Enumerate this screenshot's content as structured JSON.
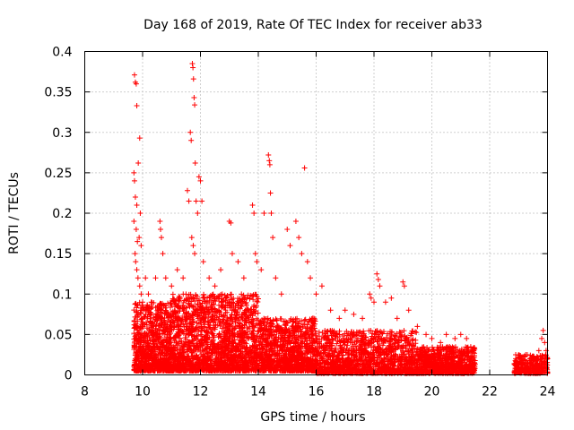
{
  "chart_data": {
    "type": "scatter",
    "title": "Day 168 of 2019, Rate Of TEC Index for receiver ab33",
    "xlabel": "GPS time / hours",
    "ylabel": "ROTI / TECUs",
    "xlim": [
      8,
      24
    ],
    "ylim": [
      0,
      0.4
    ],
    "x_ticks": [
      8,
      10,
      12,
      14,
      16,
      18,
      20,
      22,
      24
    ],
    "y_ticks": [
      0,
      0.05,
      0.1,
      0.15,
      0.2,
      0.25,
      0.3,
      0.35,
      0.4
    ],
    "x_tick_labels": [
      "8",
      "10",
      "12",
      "14",
      "16",
      "18",
      "20",
      "22",
      "24"
    ],
    "y_tick_labels": [
      "0",
      "0.05",
      "0.1",
      "0.15",
      "0.2",
      "0.25",
      "0.3",
      "0.35",
      "0.4"
    ],
    "grid": true,
    "marker": "+",
    "color": "#ff0000",
    "series": [
      {
        "name": "ROTI",
        "points": [
          [
            9.72,
            0.371
          ],
          [
            9.75,
            0.362
          ],
          [
            9.78,
            0.36
          ],
          [
            9.8,
            0.333
          ],
          [
            9.85,
            0.262
          ],
          [
            9.9,
            0.293
          ],
          [
            9.7,
            0.25
          ],
          [
            9.72,
            0.24
          ],
          [
            9.75,
            0.22
          ],
          [
            9.8,
            0.21
          ],
          [
            9.7,
            0.19
          ],
          [
            9.78,
            0.18
          ],
          [
            9.82,
            0.165
          ],
          [
            9.88,
            0.17
          ],
          [
            9.92,
            0.2
          ],
          [
            9.95,
            0.16
          ],
          [
            9.74,
            0.15
          ],
          [
            9.76,
            0.14
          ],
          [
            9.8,
            0.13
          ],
          [
            9.84,
            0.12
          ],
          [
            9.9,
            0.11
          ],
          [
            9.95,
            0.1
          ],
          [
            10.0,
            0.09
          ],
          [
            10.1,
            0.12
          ],
          [
            10.2,
            0.1
          ],
          [
            10.3,
            0.09
          ],
          [
            10.45,
            0.12
          ],
          [
            10.6,
            0.19
          ],
          [
            10.62,
            0.18
          ],
          [
            10.65,
            0.17
          ],
          [
            10.7,
            0.15
          ],
          [
            10.8,
            0.12
          ],
          [
            11.0,
            0.11
          ],
          [
            11.2,
            0.13
          ],
          [
            11.4,
            0.12
          ],
          [
            11.55,
            0.228
          ],
          [
            11.6,
            0.215
          ],
          [
            11.65,
            0.3
          ],
          [
            11.68,
            0.29
          ],
          [
            11.72,
            0.385
          ],
          [
            11.74,
            0.38
          ],
          [
            11.76,
            0.366
          ],
          [
            11.78,
            0.343
          ],
          [
            11.8,
            0.334
          ],
          [
            11.82,
            0.262
          ],
          [
            11.85,
            0.215
          ],
          [
            11.9,
            0.2
          ],
          [
            11.95,
            0.245
          ],
          [
            12.0,
            0.24
          ],
          [
            12.05,
            0.215
          ],
          [
            11.7,
            0.17
          ],
          [
            11.75,
            0.16
          ],
          [
            11.8,
            0.15
          ],
          [
            12.1,
            0.14
          ],
          [
            12.3,
            0.12
          ],
          [
            12.5,
            0.11
          ],
          [
            12.7,
            0.13
          ],
          [
            13.0,
            0.19
          ],
          [
            13.05,
            0.188
          ],
          [
            13.1,
            0.15
          ],
          [
            13.3,
            0.14
          ],
          [
            13.5,
            0.12
          ],
          [
            13.8,
            0.21
          ],
          [
            13.85,
            0.2
          ],
          [
            13.9,
            0.15
          ],
          [
            13.95,
            0.14
          ],
          [
            14.1,
            0.13
          ],
          [
            14.2,
            0.2
          ],
          [
            14.35,
            0.272
          ],
          [
            14.38,
            0.265
          ],
          [
            14.4,
            0.26
          ],
          [
            14.42,
            0.225
          ],
          [
            14.45,
            0.2
          ],
          [
            14.5,
            0.17
          ],
          [
            14.6,
            0.12
          ],
          [
            14.8,
            0.1
          ],
          [
            15.0,
            0.18
          ],
          [
            15.1,
            0.16
          ],
          [
            15.3,
            0.19
          ],
          [
            15.4,
            0.17
          ],
          [
            15.5,
            0.15
          ],
          [
            15.6,
            0.256
          ],
          [
            15.7,
            0.14
          ],
          [
            15.8,
            0.12
          ],
          [
            16.0,
            0.1
          ],
          [
            16.2,
            0.11
          ],
          [
            16.5,
            0.08
          ],
          [
            16.8,
            0.07
          ],
          [
            17.0,
            0.08
          ],
          [
            17.3,
            0.075
          ],
          [
            17.6,
            0.07
          ],
          [
            17.85,
            0.1
          ],
          [
            17.9,
            0.095
          ],
          [
            18.0,
            0.09
          ],
          [
            18.1,
            0.125
          ],
          [
            18.15,
            0.118
          ],
          [
            18.2,
            0.11
          ],
          [
            18.4,
            0.09
          ],
          [
            18.6,
            0.095
          ],
          [
            18.8,
            0.07
          ],
          [
            19.0,
            0.115
          ],
          [
            19.05,
            0.11
          ],
          [
            19.2,
            0.08
          ],
          [
            19.5,
            0.06
          ],
          [
            19.8,
            0.05
          ],
          [
            20.0,
            0.045
          ],
          [
            20.3,
            0.04
          ],
          [
            20.5,
            0.05
          ],
          [
            20.8,
            0.045
          ],
          [
            21.0,
            0.05
          ],
          [
            21.2,
            0.045
          ],
          [
            21.4,
            0.03
          ],
          [
            22.9,
            0.025
          ],
          [
            23.1,
            0.02
          ],
          [
            23.3,
            0.025
          ],
          [
            23.5,
            0.02
          ],
          [
            23.7,
            0.03
          ],
          [
            23.8,
            0.045
          ],
          [
            23.85,
            0.055
          ],
          [
            23.9,
            0.04
          ],
          [
            23.95,
            0.03
          ],
          [
            24.0,
            0.02
          ]
        ]
      }
    ],
    "dense_bands": [
      {
        "x_start": 9.7,
        "x_end": 11.0,
        "y_min": 0.005,
        "y_max": 0.09,
        "count": 900
      },
      {
        "x_start": 11.0,
        "x_end": 14.0,
        "y_min": 0.005,
        "y_max": 0.1,
        "count": 1800
      },
      {
        "x_start": 14.0,
        "x_end": 16.0,
        "y_min": 0.005,
        "y_max": 0.07,
        "count": 1100
      },
      {
        "x_start": 16.0,
        "x_end": 19.5,
        "y_min": 0.002,
        "y_max": 0.055,
        "count": 1300
      },
      {
        "x_start": 19.5,
        "x_end": 21.5,
        "y_min": 0.002,
        "y_max": 0.035,
        "count": 800
      },
      {
        "x_start": 22.85,
        "x_end": 24.0,
        "y_min": 0.002,
        "y_max": 0.025,
        "count": 300
      }
    ]
  }
}
